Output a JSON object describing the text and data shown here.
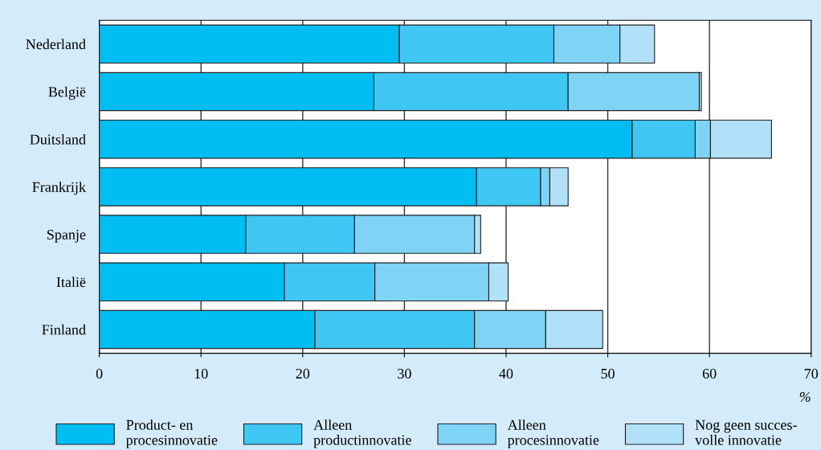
{
  "chart_data": {
    "type": "bar",
    "orientation": "horizontal",
    "stacked": true,
    "xlabel": "%",
    "categories": [
      "Nederland",
      "België",
      "Duitsland",
      "Frankrijk",
      "Spanje",
      "Italië",
      "Finland"
    ],
    "series": [
      {
        "name": "Product- en\nprocesinnovatie",
        "color": "#00bdf2",
        "values": [
          29.5,
          27.0,
          52.4,
          37.1,
          14.4,
          18.2,
          21.2
        ]
      },
      {
        "name": "Alleen\nproductinnovatie",
        "color": "#40c6f2",
        "values": [
          15.2,
          19.1,
          6.2,
          6.3,
          10.7,
          8.9,
          15.7
        ]
      },
      {
        "name": "Alleen\nprocesinnovatie",
        "color": "#7fd3f4",
        "values": [
          6.5,
          12.9,
          1.5,
          0.9,
          11.8,
          11.2,
          7.0
        ]
      },
      {
        "name": "Nog geen succes-\nvolle innovatie",
        "color": "#b0e1f8",
        "values": [
          3.4,
          0.2,
          6.0,
          1.8,
          0.6,
          1.9,
          5.6
        ]
      }
    ],
    "xlim": [
      0,
      70
    ],
    "xticks": [
      0,
      10,
      20,
      30,
      40,
      50,
      60,
      70
    ],
    "grid": "x",
    "legend": "bottom"
  }
}
